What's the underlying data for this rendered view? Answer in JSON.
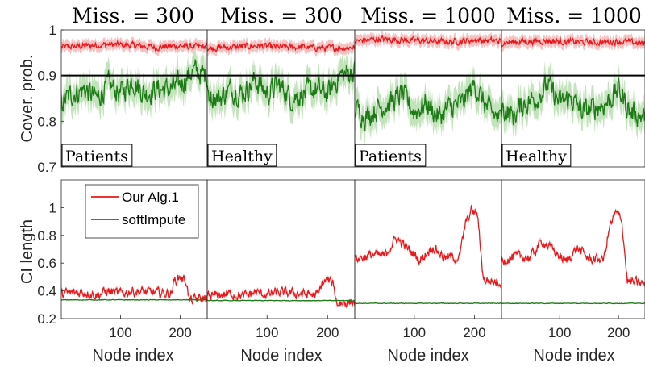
{
  "titles": [
    "Miss. = 300",
    "Miss. = 300",
    "Miss. = 1000",
    "Miss. = 1000"
  ],
  "colors": {
    "alg": "#e8191c",
    "alg_band": "#f4a6a6",
    "soft": "#1d7a16",
    "soft_band": "#a8d79e",
    "ref": "#000000"
  },
  "chart_data": [
    {
      "type": "line",
      "row": "coverage",
      "ylabel": "Cover. prob.",
      "ylim": [
        0.7,
        1.0
      ],
      "yticks": [
        "0.7",
        "0.8",
        "0.9",
        "1"
      ],
      "xlim": [
        1,
        245
      ],
      "reference_line": 0.9,
      "panels": [
        {
          "title": "Miss. = 300",
          "tag": "Patients",
          "series": [
            {
              "name": "Our Alg.1",
              "knots_x": [
                1,
                40,
                80,
                120,
                160,
                200,
                245
              ],
              "knots_y": [
                0.962,
                0.965,
                0.968,
                0.966,
                0.962,
                0.965,
                0.962
              ]
            },
            {
              "name": "softImpute",
              "knots_x": [
                1,
                20,
                40,
                60,
                80,
                100,
                120,
                140,
                160,
                180,
                200,
                220,
                245
              ],
              "knots_y": [
                0.84,
                0.86,
                0.87,
                0.85,
                0.88,
                0.86,
                0.89,
                0.86,
                0.87,
                0.87,
                0.88,
                0.91,
                0.9
              ]
            }
          ]
        },
        {
          "title": "Miss. = 300",
          "tag": "Healthy",
          "series": [
            {
              "name": "Our Alg.1",
              "knots_x": [
                1,
                40,
                80,
                120,
                160,
                200,
                245
              ],
              "knots_y": [
                0.96,
                0.962,
                0.965,
                0.962,
                0.962,
                0.96,
                0.962
              ]
            },
            {
              "name": "softImpute",
              "knots_x": [
                1,
                20,
                40,
                60,
                80,
                100,
                120,
                140,
                160,
                180,
                200,
                220,
                245
              ],
              "knots_y": [
                0.86,
                0.85,
                0.87,
                0.86,
                0.89,
                0.86,
                0.88,
                0.85,
                0.86,
                0.87,
                0.86,
                0.9,
                0.91
              ]
            }
          ]
        },
        {
          "title": "Miss. = 1000",
          "tag": "Patients",
          "series": [
            {
              "name": "Our Alg.1",
              "knots_x": [
                1,
                40,
                80,
                120,
                160,
                200,
                245
              ],
              "knots_y": [
                0.975,
                0.98,
                0.978,
                0.976,
                0.974,
                0.978,
                0.975
              ]
            },
            {
              "name": "softImpute",
              "knots_x": [
                1,
                20,
                40,
                60,
                80,
                100,
                120,
                140,
                160,
                180,
                200,
                220,
                245
              ],
              "knots_y": [
                0.83,
                0.81,
                0.83,
                0.84,
                0.86,
                0.82,
                0.84,
                0.81,
                0.83,
                0.84,
                0.88,
                0.83,
                0.8
              ]
            }
          ]
        },
        {
          "title": "Miss. = 1000",
          "tag": "Healthy",
          "series": [
            {
              "name": "Our Alg.1",
              "knots_x": [
                1,
                40,
                80,
                120,
                160,
                200,
                245
              ],
              "knots_y": [
                0.972,
                0.975,
                0.976,
                0.974,
                0.972,
                0.975,
                0.97
              ]
            },
            {
              "name": "softImpute",
              "knots_x": [
                1,
                20,
                40,
                60,
                80,
                100,
                120,
                140,
                160,
                180,
                200,
                220,
                245
              ],
              "knots_y": [
                0.83,
                0.81,
                0.84,
                0.85,
                0.88,
                0.84,
                0.85,
                0.82,
                0.83,
                0.84,
                0.87,
                0.82,
                0.81
              ]
            }
          ]
        }
      ]
    },
    {
      "type": "line",
      "row": "ci_length",
      "ylabel": "CI length",
      "ylim": [
        0.2,
        1.2
      ],
      "yticks": [
        "0.2",
        "0.4",
        "0.6",
        "0.8",
        "1"
      ],
      "xlim": [
        1,
        245
      ],
      "xticks": [
        "100",
        "200"
      ],
      "xlabel": "Node index",
      "legend": [
        "Our Alg.1",
        "softImpute"
      ],
      "panels": [
        {
          "series": [
            {
              "name": "Our Alg.1",
              "knots_x": [
                1,
                40,
                60,
                80,
                100,
                120,
                150,
                185,
                190,
                200,
                210,
                215,
                245
              ],
              "knots_y": [
                0.38,
                0.39,
                0.37,
                0.4,
                0.38,
                0.4,
                0.39,
                0.38,
                0.47,
                0.5,
                0.47,
                0.33,
                0.35
              ]
            },
            {
              "name": "softImpute",
              "knots_x": [
                1,
                245
              ],
              "knots_y": [
                0.335,
                0.335
              ]
            }
          ]
        },
        {
          "series": [
            {
              "name": "Our Alg.1",
              "knots_x": [
                1,
                40,
                60,
                80,
                100,
                120,
                150,
                185,
                190,
                200,
                210,
                215,
                245
              ],
              "knots_y": [
                0.36,
                0.38,
                0.36,
                0.39,
                0.37,
                0.39,
                0.38,
                0.37,
                0.45,
                0.48,
                0.45,
                0.31,
                0.32
              ]
            },
            {
              "name": "softImpute",
              "knots_x": [
                1,
                245
              ],
              "knots_y": [
                0.33,
                0.33
              ]
            }
          ]
        },
        {
          "series": [
            {
              "name": "Our Alg.1",
              "knots_x": [
                1,
                30,
                50,
                70,
                90,
                110,
                130,
                150,
                175,
                185,
                195,
                205,
                215,
                245
              ],
              "knots_y": [
                0.63,
                0.66,
                0.65,
                0.78,
                0.7,
                0.62,
                0.72,
                0.64,
                0.64,
                0.88,
                0.98,
                0.95,
                0.48,
                0.46
              ]
            },
            {
              "name": "softImpute",
              "knots_x": [
                1,
                245
              ],
              "knots_y": [
                0.31,
                0.31
              ]
            }
          ]
        },
        {
          "series": [
            {
              "name": "Our Alg.1",
              "knots_x": [
                1,
                30,
                50,
                70,
                90,
                110,
                130,
                150,
                175,
                185,
                195,
                205,
                215,
                245
              ],
              "knots_y": [
                0.62,
                0.65,
                0.64,
                0.76,
                0.69,
                0.61,
                0.71,
                0.63,
                0.63,
                0.86,
                0.96,
                0.93,
                0.47,
                0.45
              ]
            },
            {
              "name": "softImpute",
              "knots_x": [
                1,
                245
              ],
              "knots_y": [
                0.31,
                0.31
              ]
            }
          ]
        }
      ]
    }
  ]
}
